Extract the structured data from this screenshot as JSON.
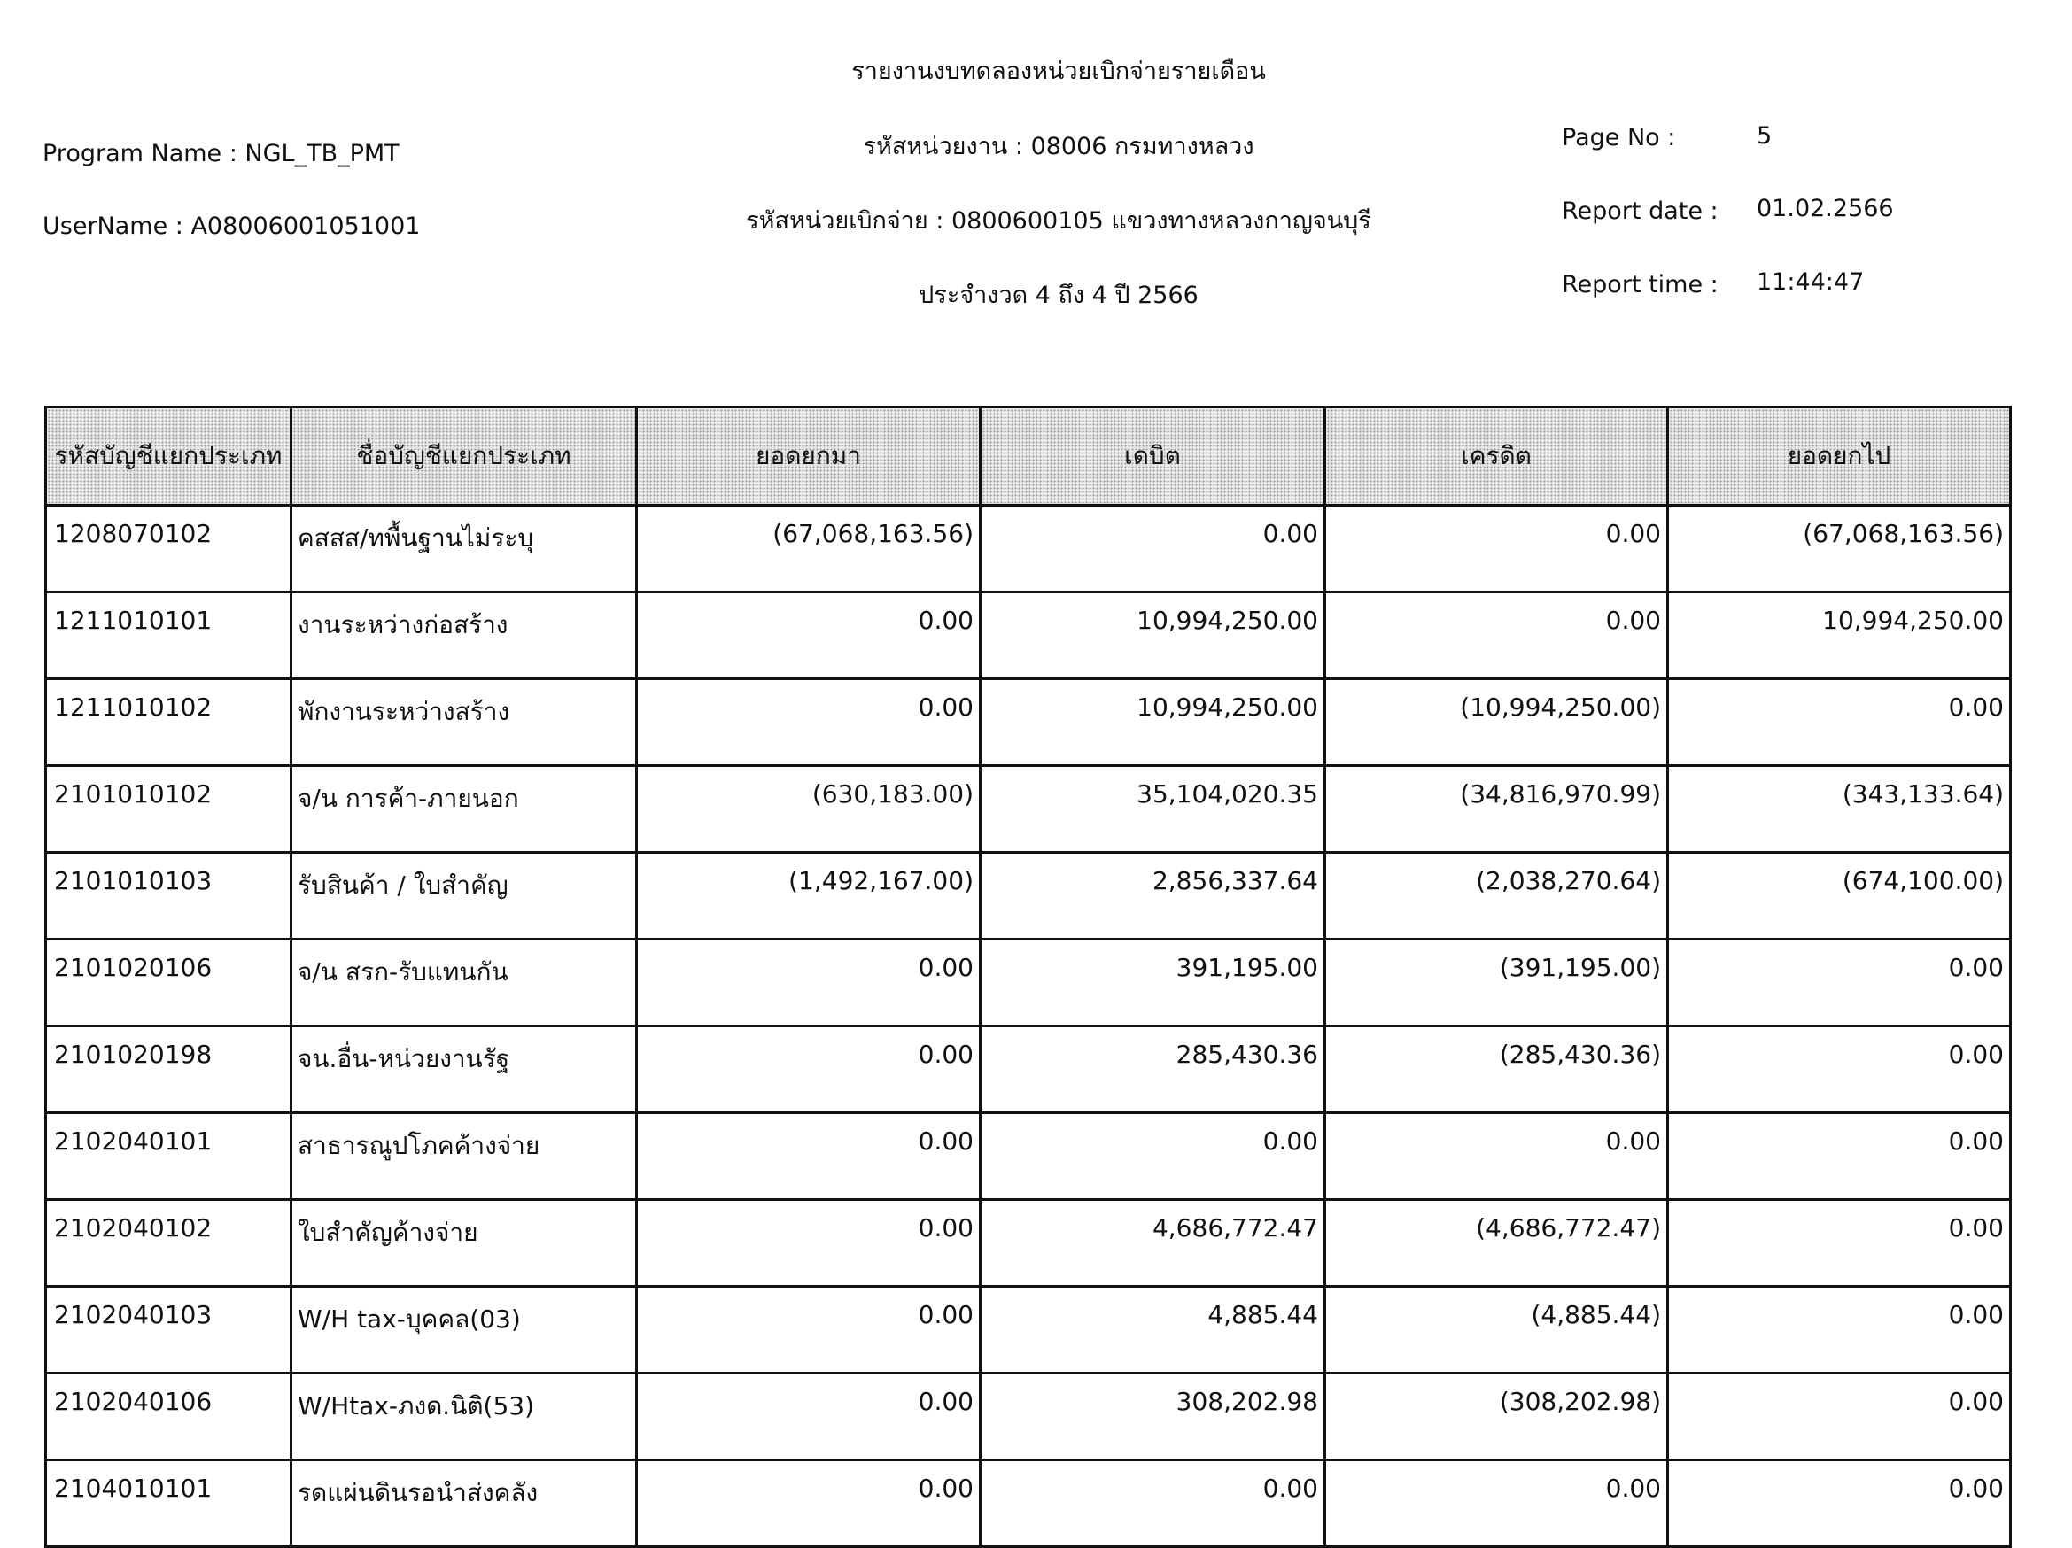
{
  "report": {
    "title": "รายงานงบทดลองหน่วยเบิกจ่ายรายเดือน",
    "program_name": "Program Name : NGL_TB_PMT",
    "username": "UserName : A08006001051001",
    "agency": "รหัสหน่วยงาน : 08006 กรมทางหลวง",
    "disbursing_unit": "รหัสหน่วยเบิกจ่าย : 0800600105 แขวงทางหลวงกาญจนบุรี",
    "period": "ประจำงวด 4 ถึง 4 ปี 2566",
    "page_no_label": "Page No :",
    "page_no": "5",
    "report_date_label": "Report date :",
    "report_date": "01.02.2566",
    "report_time_label": "Report time :",
    "report_time": "11:44:47"
  },
  "table": {
    "headers": [
      "รหัสบัญชีแยกประเภท",
      "ชื่อบัญชีแยกประเภท",
      "ยอดยกมา",
      "เดบิต",
      "เครดิต",
      "ยอดยกไป"
    ],
    "rows": [
      [
        "1208070102",
        "คสสส/ทพื้นฐานไม่ระบุ",
        "(67,068,163.56)",
        "0.00",
        "0.00",
        "(67,068,163.56)"
      ],
      [
        "1211010101",
        "งานระหว่างก่อสร้าง",
        "0.00",
        "10,994,250.00",
        "0.00",
        "10,994,250.00"
      ],
      [
        "1211010102",
        "พักงานระหว่างสร้าง",
        "0.00",
        "10,994,250.00",
        "(10,994,250.00)",
        "0.00"
      ],
      [
        "2101010102",
        "จ/น การค้า-ภายนอก",
        "(630,183.00)",
        "35,104,020.35",
        "(34,816,970.99)",
        "(343,133.64)"
      ],
      [
        "2101010103",
        "รับสินค้า / ใบสำคัญ",
        "(1,492,167.00)",
        "2,856,337.64",
        "(2,038,270.64)",
        "(674,100.00)"
      ],
      [
        "2101020106",
        "จ/น สรก-รับแทนกัน",
        "0.00",
        "391,195.00",
        "(391,195.00)",
        "0.00"
      ],
      [
        "2101020198",
        "จน.อื่น-หน่วยงานรัฐ",
        "0.00",
        "285,430.36",
        "(285,430.36)",
        "0.00"
      ],
      [
        "2102040101",
        "สาธารณูปโภคค้างจ่าย",
        "0.00",
        "0.00",
        "0.00",
        "0.00"
      ],
      [
        "2102040102",
        "ใบสำคัญค้างจ่าย",
        "0.00",
        "4,686,772.47",
        "(4,686,772.47)",
        "0.00"
      ],
      [
        "2102040103",
        "W/H tax-บุคคล(03)",
        "0.00",
        "4,885.44",
        "(4,885.44)",
        "0.00"
      ],
      [
        "2102040106",
        "W/Htax-ภงด.นิติ(53)",
        "0.00",
        "308,202.98",
        "(308,202.98)",
        "0.00"
      ],
      [
        "2104010101",
        "รดแผ่นดินรอนำส่งคลัง",
        "0.00",
        "0.00",
        "0.00",
        "0.00"
      ]
    ]
  }
}
